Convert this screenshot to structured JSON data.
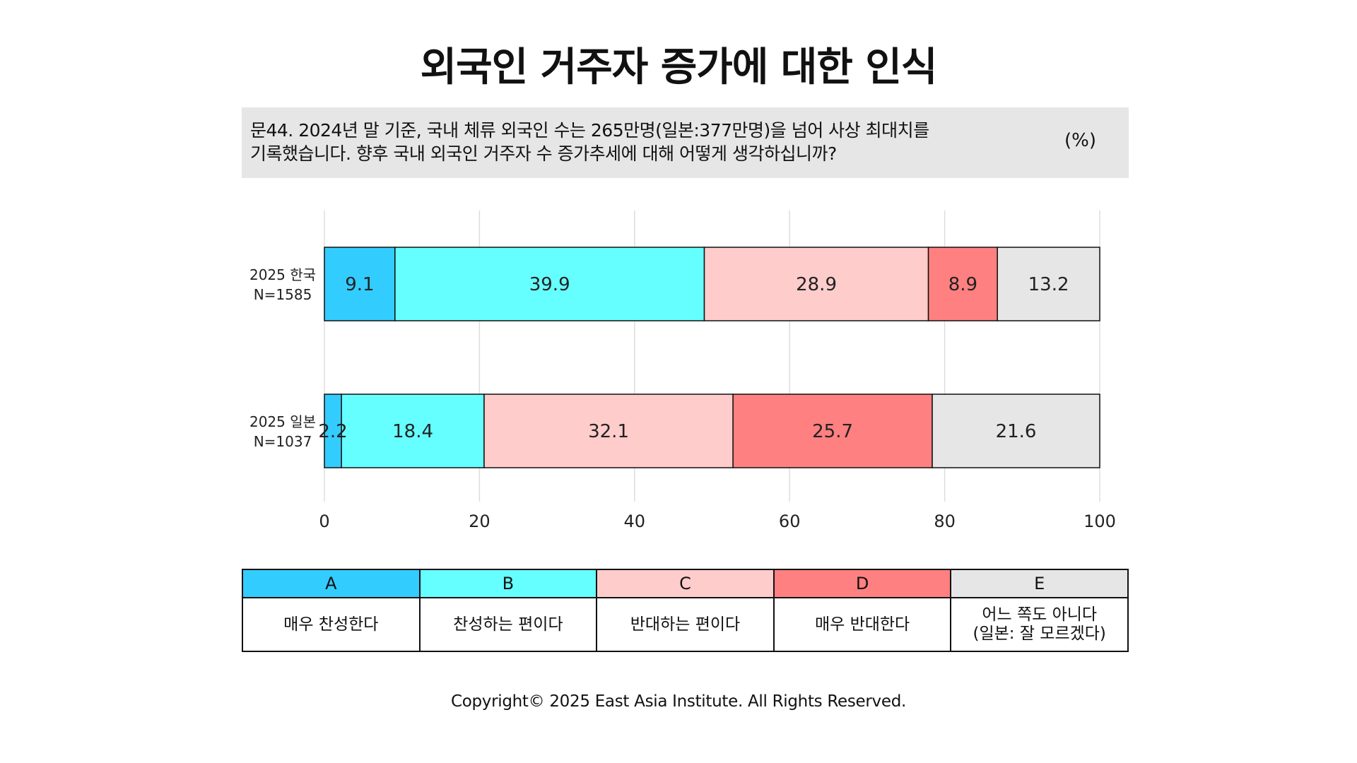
{
  "title": "외국인 거주자 증가에 대한 인식",
  "question": {
    "line1": "문44. 2024년 말 기준, 국내 체류 외국인 수는 265만명(일본:377만명)을 넘어 사상 최대치를",
    "line2": "기록했습니다. 향후 국내 외국인 거주자 수 증가추세에 대해 어떻게 생각하십니까?",
    "unit": "(%)"
  },
  "chart_data": {
    "type": "bar",
    "orientation": "horizontal",
    "stacked": true,
    "categories": [
      {
        "line1": "2025 한국",
        "line2": "N=1585"
      },
      {
        "line1": "2025 일본",
        "line2": "N=1037"
      }
    ],
    "series": [
      {
        "name": "A",
        "color": "#33CCFF",
        "values": [
          9.1,
          2.2
        ]
      },
      {
        "name": "B",
        "color": "#66FFFF",
        "values": [
          39.9,
          18.4
        ]
      },
      {
        "name": "C",
        "color": "#FFCCCC",
        "values": [
          28.9,
          32.1
        ]
      },
      {
        "name": "D",
        "color": "#FF8080",
        "values": [
          8.9,
          25.7
        ]
      },
      {
        "name": "E",
        "color": "#E6E6E6",
        "values": [
          13.2,
          21.6
        ]
      }
    ],
    "xlim": [
      0,
      100
    ],
    "xticks": [
      0,
      20,
      40,
      60,
      80,
      100
    ],
    "grid": true
  },
  "legend": {
    "items": [
      {
        "code": "A",
        "color": "#33CCFF",
        "label": [
          "매우 찬성한다"
        ]
      },
      {
        "code": "B",
        "color": "#66FFFF",
        "label": [
          "찬성하는 편이다"
        ]
      },
      {
        "code": "C",
        "color": "#FFCCCC",
        "label": [
          "반대하는 편이다"
        ]
      },
      {
        "code": "D",
        "color": "#FF8080",
        "label": [
          "매우 반대한다"
        ]
      },
      {
        "code": "E",
        "color": "#E6E6E6",
        "label": [
          "어느 쪽도 아니다",
          "(일본: 잘 모르겠다)"
        ]
      }
    ]
  },
  "footer": {
    "copyright": "Copyright© 2025 East Asia Institute. All Rights Reserved."
  }
}
